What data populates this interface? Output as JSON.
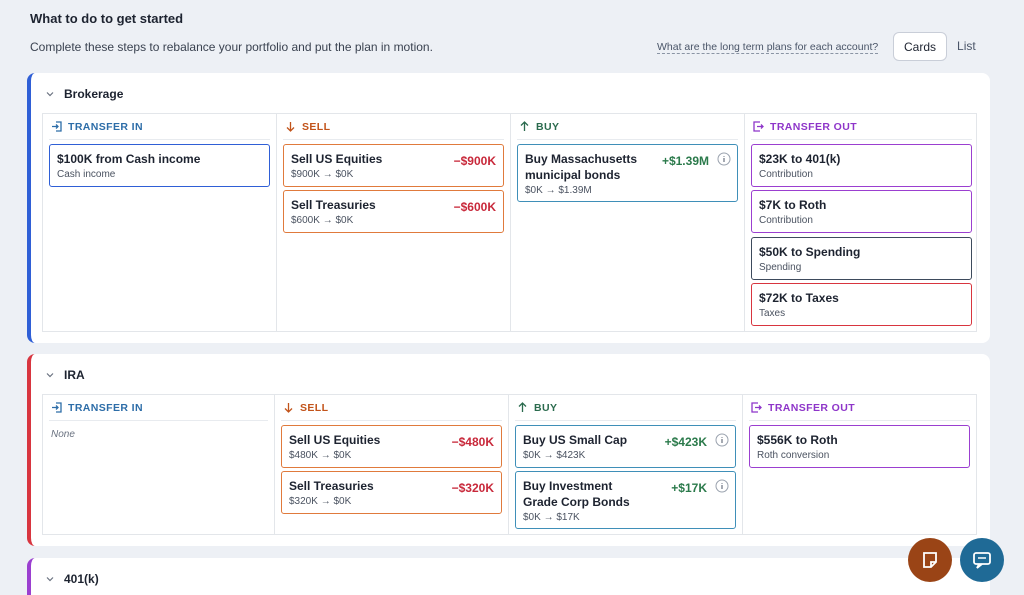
{
  "header": {
    "title": "What to do to get started",
    "subtitle": "Complete these steps to rebalance your portfolio and put the plan in motion.",
    "link": "What are the long term plans for each account?",
    "views": [
      "Cards",
      "List"
    ]
  },
  "accounts": [
    {
      "name": "Brokerage",
      "color": "#2f5fd6",
      "columns": [
        {
          "label": "TRANSFER IN",
          "color": "#2d6da8",
          "items": [
            {
              "title": "$100K from Cash income",
              "detail": "Cash income",
              "color": "#2f5fd6"
            }
          ]
        },
        {
          "label": "SELL",
          "color": "#c2531a",
          "items": [
            {
              "title": "Sell US Equities",
              "detail": "$900K → $0K",
              "amount": "−$900K",
              "color": "#e07a3c"
            },
            {
              "title": "Sell Treasuries",
              "detail": "$600K → $0K",
              "amount": "−$600K",
              "color": "#e07a3c"
            }
          ]
        },
        {
          "label": "BUY",
          "color": "#2b6b4e",
          "items": [
            {
              "title": "Buy Massachusetts municipal bonds",
              "detail": "$0K → $1.39M",
              "amount": "+$1.39M",
              "color": "#3f8fb8"
            }
          ]
        },
        {
          "label": "TRANSFER OUT",
          "color": "#8e35c9",
          "items": [
            {
              "title": "$23K to 401(k)",
              "detail": "Contribution",
              "color": "#9b3fd0"
            },
            {
              "title": "$7K to Roth",
              "detail": "Contribution",
              "color": "#9b3fd0"
            },
            {
              "title": "$50K to Spending",
              "detail": "Spending",
              "color": "#3d4a5c"
            },
            {
              "title": "$72K to Taxes",
              "detail": "Taxes",
              "color": "#d8353f"
            }
          ]
        }
      ]
    },
    {
      "name": "IRA",
      "color": "#d8353f",
      "columns": [
        {
          "label": "TRANSFER IN",
          "color": "#2d6da8",
          "empty": "None",
          "items": []
        },
        {
          "label": "SELL",
          "color": "#c2531a",
          "items": [
            {
              "title": "Sell US Equities",
              "detail": "$480K → $0K",
              "amount": "−$480K",
              "color": "#e07a3c"
            },
            {
              "title": "Sell Treasuries",
              "detail": "$320K → $0K",
              "amount": "−$320K",
              "color": "#e07a3c"
            }
          ]
        },
        {
          "label": "BUY",
          "color": "#2b6b4e",
          "items": [
            {
              "title": "Buy US Small Cap",
              "detail": "$0K → $423K",
              "amount": "+$423K",
              "color": "#3f8fb8"
            },
            {
              "title": "Buy Investment Grade Corp Bonds",
              "detail": "$0K → $17K",
              "amount": "+$17K",
              "color": "#3f8fb8"
            }
          ]
        },
        {
          "label": "TRANSFER OUT",
          "color": "#8e35c9",
          "items": [
            {
              "title": "$556K to Roth",
              "detail": "Roth conversion",
              "color": "#9b3fd0"
            }
          ]
        }
      ]
    },
    {
      "name": "401(k)",
      "color": "#9b3fd0",
      "columns": []
    }
  ]
}
